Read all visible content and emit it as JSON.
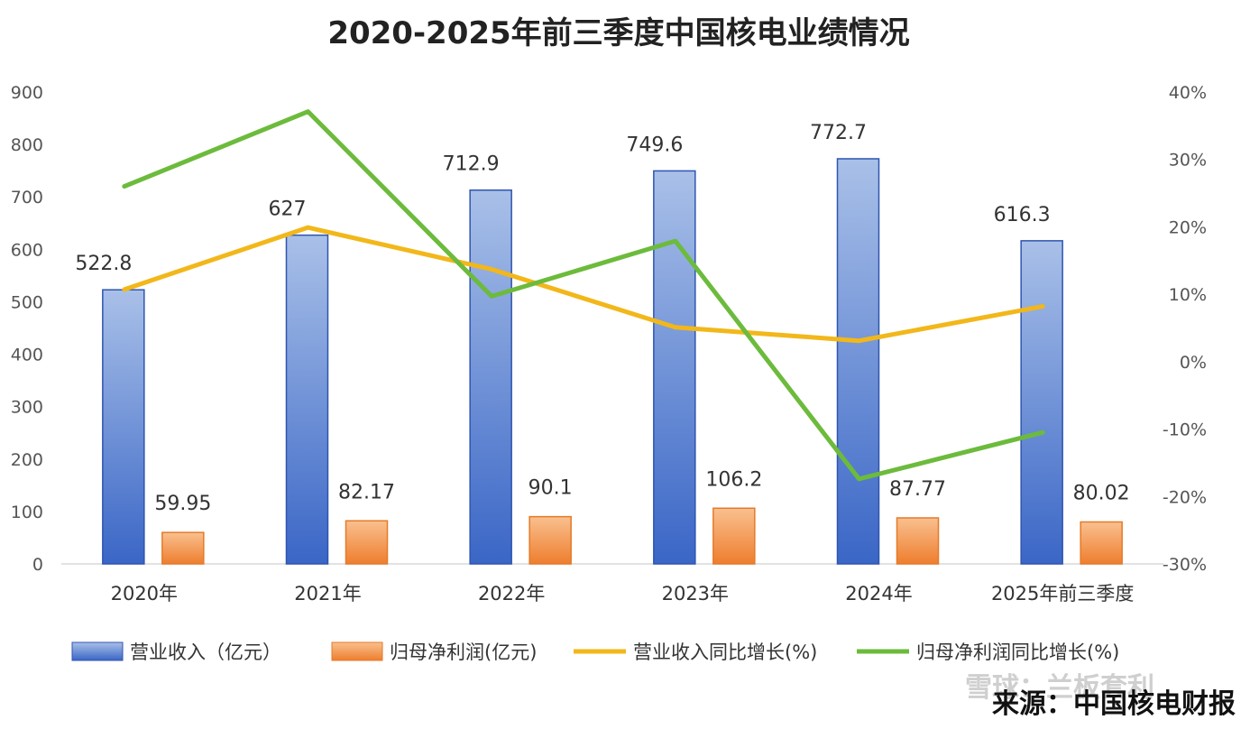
{
  "chart_data": {
    "type": "bar",
    "title": "2020-2025年前三季度中国核电业绩情况",
    "categories": [
      "2020年",
      "2021年",
      "2022年",
      "2023年",
      "2024年",
      "2025年前三季度"
    ],
    "series": [
      {
        "name": "营业收入（亿元）",
        "kind": "bar",
        "axis": "left",
        "color": "#4472C4",
        "values": [
          522.8,
          627,
          712.9,
          749.6,
          772.7,
          616.3
        ],
        "labels": [
          "522.8",
          "627",
          "712.9",
          "749.6",
          "772.7",
          "616.3"
        ]
      },
      {
        "name": "归母净利润(亿元)",
        "kind": "bar",
        "axis": "left",
        "color": "#ED7D31",
        "values": [
          59.95,
          82.17,
          90.1,
          106.2,
          87.77,
          80.02
        ],
        "labels": [
          "59.95",
          "82.17",
          "90.1",
          "106.2",
          "87.77",
          "80.02"
        ]
      },
      {
        "name": "营业收入同比增长(%)",
        "kind": "line",
        "axis": "right",
        "color": "#F2B71A",
        "values": [
          10.7,
          19.9,
          13.7,
          5.1,
          3.1,
          8.2
        ]
      },
      {
        "name": "归母净利润同比增长(%)",
        "kind": "line",
        "axis": "right",
        "color": "#6CBB3C",
        "values": [
          26.0,
          37.1,
          9.7,
          17.9,
          -17.4,
          -10.5
        ]
      }
    ],
    "left_axis": {
      "min": 0,
      "max": 900,
      "ticks": [
        "0",
        "100",
        "200",
        "300",
        "400",
        "500",
        "600",
        "700",
        "800",
        "900"
      ]
    },
    "right_axis": {
      "min": -30,
      "max": 40,
      "ticks": [
        "-30%",
        "-20%",
        "-10%",
        "0%",
        "10%",
        "20%",
        "30%",
        "40%"
      ]
    },
    "legend_position": "bottom"
  },
  "source": "来源：中国核电财报",
  "watermark": "雪球：兰板套利"
}
